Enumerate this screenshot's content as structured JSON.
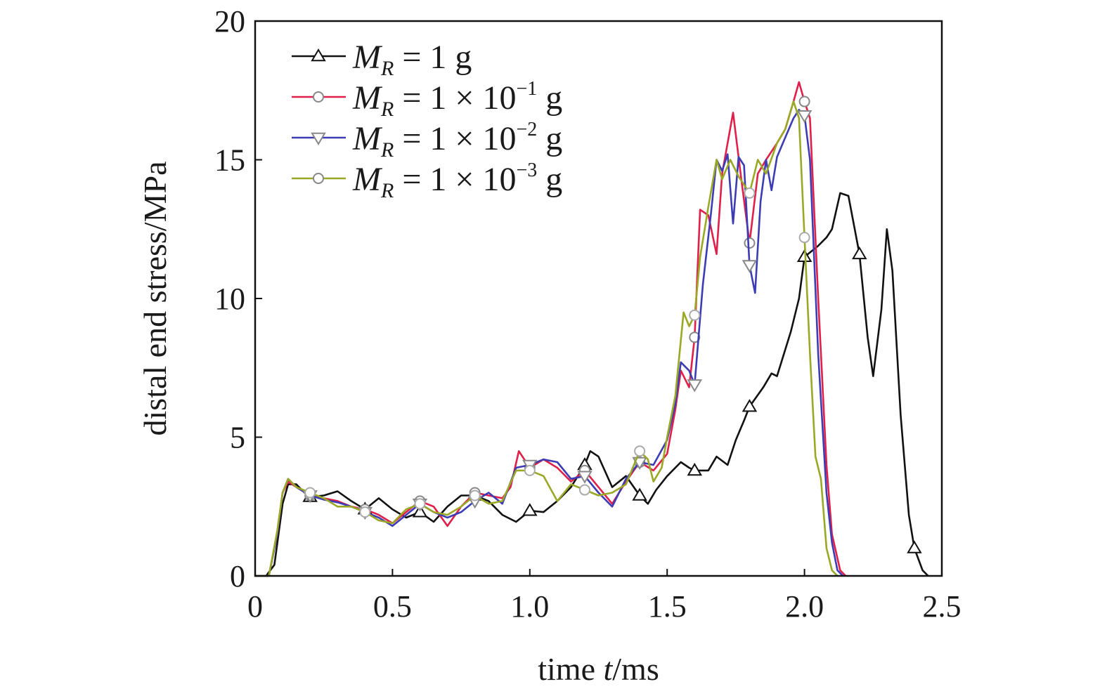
{
  "chart_data": {
    "type": "line",
    "xlabel_prefix": "time ",
    "xlabel_var": "t",
    "xlabel_unit": "/ms",
    "ylabel": "distal end stress/MPa",
    "xlim": [
      0,
      2.5
    ],
    "ylim": [
      0,
      20
    ],
    "x_ticks": [
      "0",
      "0.5",
      "1.0",
      "1.5",
      "2.0",
      "2.5"
    ],
    "y_ticks": [
      "0",
      "5",
      "10",
      "15",
      "20"
    ],
    "grid": false,
    "legend_position": "top-left",
    "series": [
      {
        "name_var": "M",
        "name_sub": "R",
        "name_value": " = 1 g",
        "name_exp": "",
        "color": "#111111",
        "marker": "triangle-up",
        "marker_x": [
          0.2,
          0.4,
          0.6,
          0.8,
          1.0,
          1.2,
          1.4,
          1.6,
          1.8,
          2.0,
          2.2,
          2.4
        ],
        "points": [
          [
            0,
            0
          ],
          [
            0.04,
            0
          ],
          [
            0.07,
            0.4
          ],
          [
            0.1,
            2.6
          ],
          [
            0.12,
            3.3
          ],
          [
            0.15,
            3.3
          ],
          [
            0.18,
            3.0
          ],
          [
            0.2,
            2.85
          ],
          [
            0.25,
            2.9
          ],
          [
            0.3,
            3.05
          ],
          [
            0.35,
            2.7
          ],
          [
            0.4,
            2.4
          ],
          [
            0.45,
            2.8
          ],
          [
            0.5,
            2.4
          ],
          [
            0.55,
            2.1
          ],
          [
            0.6,
            2.3
          ],
          [
            0.65,
            1.95
          ],
          [
            0.7,
            2.5
          ],
          [
            0.75,
            2.9
          ],
          [
            0.8,
            2.9
          ],
          [
            0.85,
            2.7
          ],
          [
            0.9,
            2.2
          ],
          [
            0.95,
            1.95
          ],
          [
            1.0,
            2.35
          ],
          [
            1.05,
            2.3
          ],
          [
            1.1,
            2.7
          ],
          [
            1.15,
            3.2
          ],
          [
            1.2,
            4.0
          ],
          [
            1.22,
            4.5
          ],
          [
            1.25,
            4.3
          ],
          [
            1.3,
            3.2
          ],
          [
            1.35,
            3.6
          ],
          [
            1.4,
            2.9
          ],
          [
            1.43,
            2.6
          ],
          [
            1.46,
            3.1
          ],
          [
            1.5,
            3.6
          ],
          [
            1.55,
            4.1
          ],
          [
            1.58,
            3.9
          ],
          [
            1.6,
            3.8
          ],
          [
            1.65,
            3.8
          ],
          [
            1.68,
            4.3
          ],
          [
            1.72,
            4.0
          ],
          [
            1.75,
            4.9
          ],
          [
            1.78,
            5.6
          ],
          [
            1.8,
            6.1
          ],
          [
            1.85,
            6.8
          ],
          [
            1.88,
            7.3
          ],
          [
            1.9,
            7.2
          ],
          [
            1.95,
            8.8
          ],
          [
            1.98,
            10.0
          ],
          [
            2.0,
            11.5
          ],
          [
            2.05,
            11.9
          ],
          [
            2.08,
            12.2
          ],
          [
            2.1,
            12.5
          ],
          [
            2.13,
            13.8
          ],
          [
            2.16,
            13.7
          ],
          [
            2.2,
            11.6
          ],
          [
            2.23,
            8.6
          ],
          [
            2.25,
            7.2
          ],
          [
            2.28,
            9.6
          ],
          [
            2.3,
            12.5
          ],
          [
            2.32,
            11.0
          ],
          [
            2.35,
            5.8
          ],
          [
            2.38,
            2.2
          ],
          [
            2.4,
            1.0
          ],
          [
            2.43,
            0.2
          ],
          [
            2.45,
            0
          ]
        ]
      },
      {
        "name_var": "M",
        "name_sub": "R",
        "name_value": " = 1 × 10",
        "name_exp": "−1",
        "name_unit": " g",
        "color": "#e0204a",
        "marker": "circle",
        "marker_x": [
          0.2,
          0.4,
          0.6,
          0.8,
          1.0,
          1.2,
          1.4,
          1.6,
          1.8,
          2.0
        ],
        "points": [
          [
            0,
            0
          ],
          [
            0.05,
            0
          ],
          [
            0.08,
            1.5
          ],
          [
            0.1,
            3.0
          ],
          [
            0.12,
            3.4
          ],
          [
            0.15,
            3.2
          ],
          [
            0.2,
            2.9
          ],
          [
            0.25,
            2.8
          ],
          [
            0.3,
            2.7
          ],
          [
            0.35,
            2.5
          ],
          [
            0.4,
            2.4
          ],
          [
            0.45,
            2.2
          ],
          [
            0.5,
            1.9
          ],
          [
            0.55,
            2.3
          ],
          [
            0.6,
            2.7
          ],
          [
            0.65,
            2.5
          ],
          [
            0.7,
            1.8
          ],
          [
            0.75,
            2.5
          ],
          [
            0.8,
            3.0
          ],
          [
            0.85,
            2.9
          ],
          [
            0.9,
            2.8
          ],
          [
            0.93,
            3.2
          ],
          [
            0.96,
            4.5
          ],
          [
            1.0,
            3.9
          ],
          [
            1.05,
            4.2
          ],
          [
            1.1,
            3.9
          ],
          [
            1.15,
            3.4
          ],
          [
            1.2,
            3.8
          ],
          [
            1.25,
            3.2
          ],
          [
            1.3,
            2.6
          ],
          [
            1.35,
            3.4
          ],
          [
            1.4,
            4.1
          ],
          [
            1.45,
            3.8
          ],
          [
            1.5,
            4.4
          ],
          [
            1.53,
            6.0
          ],
          [
            1.55,
            7.4
          ],
          [
            1.58,
            6.8
          ],
          [
            1.6,
            8.6
          ],
          [
            1.62,
            13.2
          ],
          [
            1.65,
            13.0
          ],
          [
            1.68,
            11.6
          ],
          [
            1.7,
            14.5
          ],
          [
            1.74,
            16.7
          ],
          [
            1.77,
            14.3
          ],
          [
            1.8,
            12.0
          ],
          [
            1.83,
            14.5
          ],
          [
            1.86,
            15.0
          ],
          [
            1.9,
            15.6
          ],
          [
            1.93,
            16.1
          ],
          [
            1.96,
            17.1
          ],
          [
            1.98,
            17.8
          ],
          [
            2.0,
            17.1
          ],
          [
            2.02,
            16.5
          ],
          [
            2.05,
            10.0
          ],
          [
            2.08,
            4.0
          ],
          [
            2.1,
            1.5
          ],
          [
            2.13,
            0.2
          ],
          [
            2.15,
            0
          ]
        ]
      },
      {
        "name_var": "M",
        "name_sub": "R",
        "name_value": " = 1 × 10",
        "name_exp": "−2",
        "name_unit": " g",
        "color": "#3c3cb4",
        "marker": "triangle-down",
        "marker_x": [
          0.2,
          0.4,
          0.6,
          0.8,
          1.0,
          1.2,
          1.4,
          1.6,
          1.8,
          2.0
        ],
        "points": [
          [
            0,
            0
          ],
          [
            0.05,
            0
          ],
          [
            0.08,
            1.5
          ],
          [
            0.1,
            3.0
          ],
          [
            0.12,
            3.5
          ],
          [
            0.15,
            3.2
          ],
          [
            0.2,
            2.9
          ],
          [
            0.25,
            2.75
          ],
          [
            0.3,
            2.65
          ],
          [
            0.35,
            2.5
          ],
          [
            0.4,
            2.3
          ],
          [
            0.45,
            2.1
          ],
          [
            0.5,
            1.8
          ],
          [
            0.55,
            2.2
          ],
          [
            0.6,
            2.6
          ],
          [
            0.65,
            2.3
          ],
          [
            0.7,
            2.1
          ],
          [
            0.75,
            2.3
          ],
          [
            0.8,
            2.7
          ],
          [
            0.85,
            3.0
          ],
          [
            0.9,
            2.6
          ],
          [
            0.95,
            3.9
          ],
          [
            1.0,
            4.0
          ],
          [
            1.05,
            4.2
          ],
          [
            1.1,
            4.1
          ],
          [
            1.15,
            3.5
          ],
          [
            1.2,
            3.6
          ],
          [
            1.25,
            3.0
          ],
          [
            1.3,
            2.5
          ],
          [
            1.35,
            3.5
          ],
          [
            1.4,
            4.1
          ],
          [
            1.45,
            4.0
          ],
          [
            1.5,
            4.9
          ],
          [
            1.53,
            6.2
          ],
          [
            1.55,
            7.7
          ],
          [
            1.58,
            7.4
          ],
          [
            1.6,
            6.9
          ],
          [
            1.63,
            10.5
          ],
          [
            1.66,
            13.1
          ],
          [
            1.68,
            15.0
          ],
          [
            1.7,
            14.6
          ],
          [
            1.72,
            15.2
          ],
          [
            1.74,
            12.7
          ],
          [
            1.76,
            15.1
          ],
          [
            1.78,
            14.8
          ],
          [
            1.8,
            11.2
          ],
          [
            1.82,
            10.2
          ],
          [
            1.84,
            13.5
          ],
          [
            1.86,
            15.0
          ],
          [
            1.88,
            13.9
          ],
          [
            1.9,
            15.1
          ],
          [
            1.93,
            15.8
          ],
          [
            1.96,
            16.5
          ],
          [
            1.98,
            16.8
          ],
          [
            2.0,
            16.6
          ],
          [
            2.02,
            15.0
          ],
          [
            2.05,
            8.0
          ],
          [
            2.08,
            3.0
          ],
          [
            2.1,
            1.2
          ],
          [
            2.12,
            0.2
          ],
          [
            2.14,
            0
          ]
        ]
      },
      {
        "name_var": "M",
        "name_sub": "R",
        "name_value": " = 1 × 10",
        "name_exp": "−3",
        "name_unit": " g",
        "color": "#9aa826",
        "marker": "circle",
        "marker_x": [
          0.2,
          0.4,
          0.6,
          0.8,
          1.0,
          1.2,
          1.4,
          1.6,
          1.8,
          2.0
        ],
        "points": [
          [
            0,
            0
          ],
          [
            0.05,
            0
          ],
          [
            0.08,
            1.6
          ],
          [
            0.1,
            3.0
          ],
          [
            0.12,
            3.5
          ],
          [
            0.15,
            3.2
          ],
          [
            0.2,
            3.0
          ],
          [
            0.25,
            2.8
          ],
          [
            0.3,
            2.5
          ],
          [
            0.35,
            2.5
          ],
          [
            0.4,
            2.3
          ],
          [
            0.45,
            2.0
          ],
          [
            0.5,
            1.9
          ],
          [
            0.55,
            2.4
          ],
          [
            0.6,
            2.6
          ],
          [
            0.65,
            2.3
          ],
          [
            0.7,
            2.2
          ],
          [
            0.75,
            2.5
          ],
          [
            0.8,
            2.9
          ],
          [
            0.85,
            2.6
          ],
          [
            0.9,
            2.7
          ],
          [
            0.95,
            3.8
          ],
          [
            1.0,
            3.8
          ],
          [
            1.05,
            3.6
          ],
          [
            1.1,
            2.7
          ],
          [
            1.15,
            3.3
          ],
          [
            1.2,
            3.1
          ],
          [
            1.25,
            2.9
          ],
          [
            1.3,
            3.0
          ],
          [
            1.35,
            3.3
          ],
          [
            1.4,
            4.5
          ],
          [
            1.43,
            4.2
          ],
          [
            1.45,
            3.4
          ],
          [
            1.48,
            3.9
          ],
          [
            1.5,
            5.0
          ],
          [
            1.53,
            6.5
          ],
          [
            1.56,
            9.5
          ],
          [
            1.58,
            9.0
          ],
          [
            1.6,
            9.4
          ],
          [
            1.62,
            11.5
          ],
          [
            1.65,
            13.3
          ],
          [
            1.68,
            15.0
          ],
          [
            1.7,
            14.3
          ],
          [
            1.73,
            15.0
          ],
          [
            1.76,
            14.4
          ],
          [
            1.8,
            13.8
          ],
          [
            1.83,
            15.0
          ],
          [
            1.86,
            14.5
          ],
          [
            1.9,
            15.6
          ],
          [
            1.93,
            16.1
          ],
          [
            1.96,
            17.1
          ],
          [
            1.98,
            16.5
          ],
          [
            2.0,
            12.2
          ],
          [
            2.02,
            8.0
          ],
          [
            2.04,
            4.3
          ],
          [
            2.06,
            3.5
          ],
          [
            2.08,
            1.0
          ],
          [
            2.1,
            0.2
          ],
          [
            2.12,
            0
          ]
        ]
      }
    ]
  }
}
